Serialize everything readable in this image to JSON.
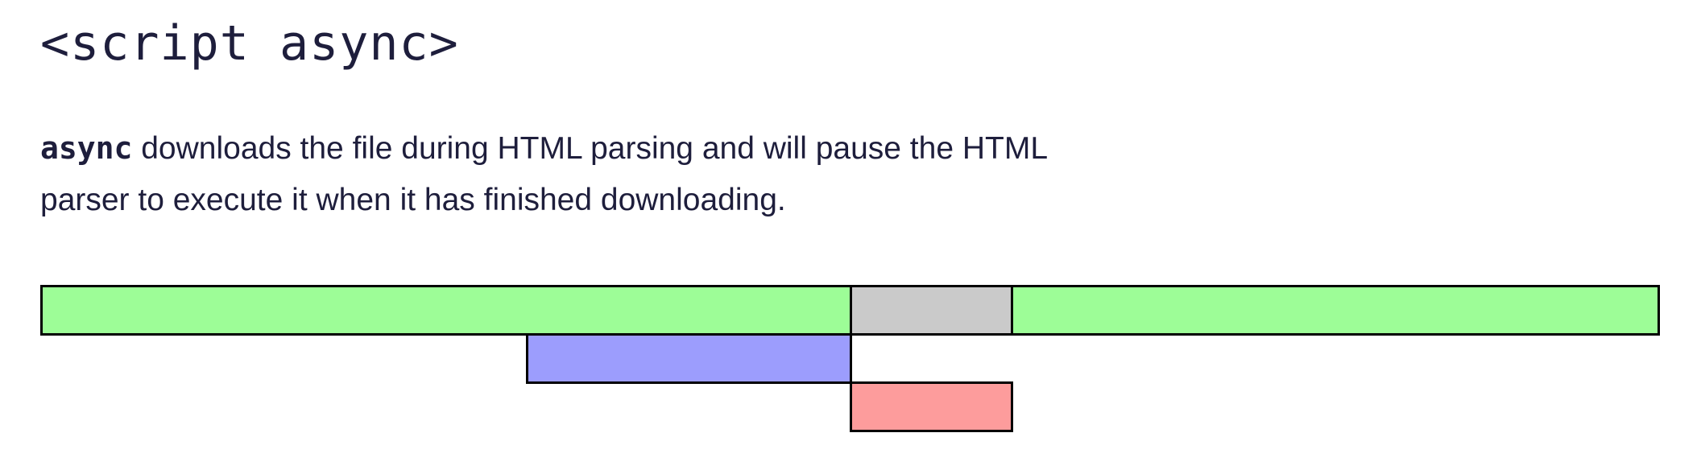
{
  "title": "<script async>",
  "description": {
    "keyword": "async",
    "text_line1": " downloads the file during HTML parsing and will pause the HTML",
    "text_line2": "parser to execute it when it has finished downloading."
  },
  "colors": {
    "parsing": "#9dfd97",
    "paused": "#cacaca",
    "fetch": "#9c9dfd",
    "execute": "#fd9c9c",
    "text": "#1e1e3c",
    "border": "#000000"
  },
  "legend_semantics": {
    "segments": [
      "html-parsing",
      "parser-paused",
      "html-parsing-resumed",
      "script-download",
      "script-execution"
    ]
  }
}
